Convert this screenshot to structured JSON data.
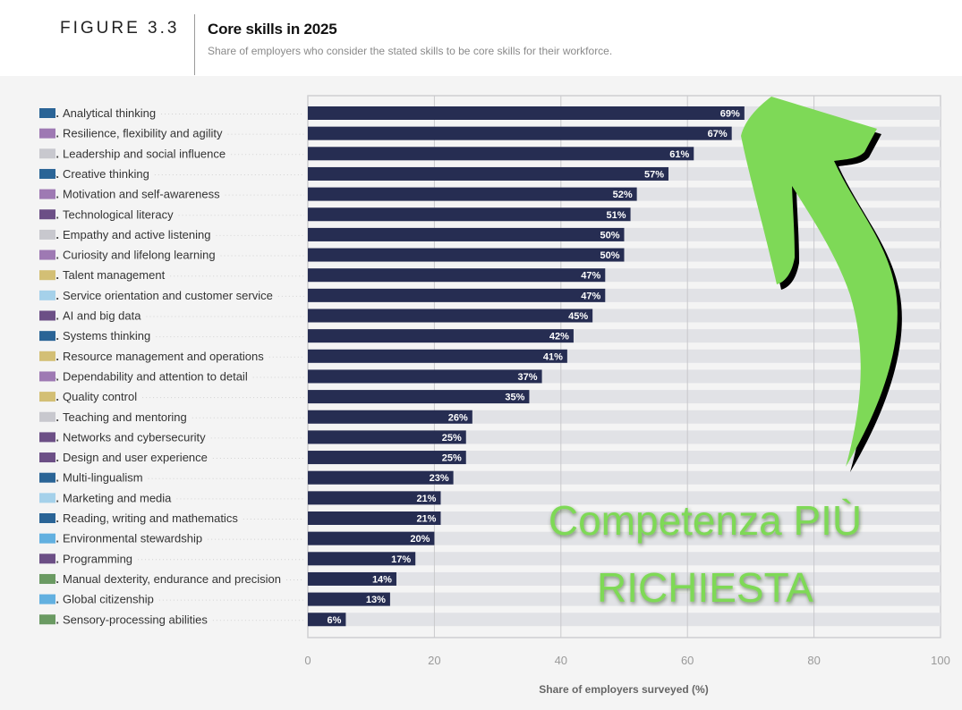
{
  "header": {
    "figure_label": "FIGURE 3.3",
    "title": "Core skills in 2025",
    "subtitle": "Share of employers who consider the stated skills to be core skills for their workforce."
  },
  "chart_data": {
    "type": "bar",
    "orientation": "horizontal",
    "title": "Core skills in 2025",
    "subtitle": "Share of employers who consider the stated skills to be core skills for their workforce.",
    "xlabel": "Share of employers surveyed (%)",
    "ylabel": "",
    "xlim": [
      0,
      100
    ],
    "x_ticks": [
      "0",
      "20",
      "40",
      "60",
      "80",
      "100"
    ],
    "grid": true,
    "value_suffix": "%",
    "bar_color": "#262d52",
    "track_color": "#e1e2e6",
    "categories": [
      {
        "rank": "1.",
        "label": "Analytical thinking",
        "value": 69,
        "swatch": "#2a6496"
      },
      {
        "rank": "2.",
        "label": "Resilience, flexibility and agility",
        "value": 67,
        "swatch": "#9e79b3"
      },
      {
        "rank": "3.",
        "label": "Leadership and social influence",
        "value": 61,
        "swatch": "#c8c8ce"
      },
      {
        "rank": "4.",
        "label": "Creative thinking",
        "value": 57,
        "swatch": "#2a6496"
      },
      {
        "rank": "5.",
        "label": "Motivation and self-awareness",
        "value": 52,
        "swatch": "#9e79b3"
      },
      {
        "rank": "6.",
        "label": "Technological literacy",
        "value": 51,
        "swatch": "#6c4f86"
      },
      {
        "rank": "7.",
        "label": "Empathy and active listening",
        "value": 50,
        "swatch": "#c8c8ce"
      },
      {
        "rank": "8.",
        "label": "Curiosity and lifelong learning",
        "value": 50,
        "swatch": "#9e79b3"
      },
      {
        "rank": "9.",
        "label": "Talent management",
        "value": 47,
        "swatch": "#d3bf75"
      },
      {
        "rank": "10.",
        "label": "Service orientation and customer service",
        "value": 47,
        "swatch": "#a5d1ea"
      },
      {
        "rank": "11.",
        "label": "AI and big data",
        "value": 45,
        "swatch": "#6c4f86"
      },
      {
        "rank": "12.",
        "label": "Systems thinking",
        "value": 42,
        "swatch": "#2a6496"
      },
      {
        "rank": "13.",
        "label": "Resource management and operations",
        "value": 41,
        "swatch": "#d3bf75"
      },
      {
        "rank": "14.",
        "label": "Dependability and attention to detail",
        "value": 37,
        "swatch": "#9e79b3"
      },
      {
        "rank": "15.",
        "label": "Quality control",
        "value": 35,
        "swatch": "#d3bf75"
      },
      {
        "rank": "16.",
        "label": "Teaching and mentoring",
        "value": 26,
        "swatch": "#c8c8ce"
      },
      {
        "rank": "17.",
        "label": "Networks and cybersecurity",
        "value": 25,
        "swatch": "#6c4f86"
      },
      {
        "rank": "18.",
        "label": "Design and user experience",
        "value": 25,
        "swatch": "#6c4f86"
      },
      {
        "rank": "19.",
        "label": "Multi-lingualism",
        "value": 23,
        "swatch": "#2a6496"
      },
      {
        "rank": "20.",
        "label": "Marketing and media",
        "value": 21,
        "swatch": "#a5d1ea"
      },
      {
        "rank": "21.",
        "label": "Reading, writing and mathematics",
        "value": 21,
        "swatch": "#2a6496"
      },
      {
        "rank": "22.",
        "label": "Environmental stewardship",
        "value": 20,
        "swatch": "#62b0e0"
      },
      {
        "rank": "23.",
        "label": "Programming",
        "value": 17,
        "swatch": "#6c4f86"
      },
      {
        "rank": "24.",
        "label": "Manual dexterity, endurance and precision",
        "value": 14,
        "swatch": "#6a9a62"
      },
      {
        "rank": "25.",
        "label": "Global citizenship",
        "value": 13,
        "swatch": "#62b0e0"
      },
      {
        "rank": "26.",
        "label": "Sensory-processing abilities",
        "value": 6,
        "swatch": "#6a9a62"
      }
    ],
    "annotations": [
      {
        "type": "arrow",
        "color": "#7ed957",
        "points_to": "Analytical thinking"
      },
      {
        "type": "text",
        "lines": [
          "Competenza PIÙ",
          "RICHIESTA"
        ],
        "color": "#7ed957"
      }
    ]
  }
}
